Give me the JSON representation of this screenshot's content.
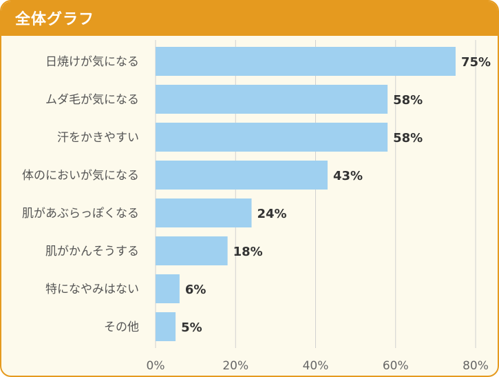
{
  "header": {
    "title": "全体グラフ"
  },
  "colors": {
    "accent": "#e59a1f",
    "background": "#fdfaec",
    "bar": "#9fd0f0",
    "grid": "#d0d0d0"
  },
  "chart_data": {
    "type": "bar",
    "orientation": "horizontal",
    "title": "全体グラフ",
    "categories": [
      "日焼けが気になる",
      "ムダ毛が気になる",
      "汗をかきやすい",
      "体のにおいが気になる",
      "肌があぶらっぽくなる",
      "肌がかんそうする",
      "特になやみはない",
      "その他"
    ],
    "values": [
      75,
      58,
      58,
      43,
      24,
      18,
      6,
      5
    ],
    "value_labels": [
      "75%",
      "58%",
      "58%",
      "43%",
      "24%",
      "18%",
      "6%",
      "5%"
    ],
    "xlim": [
      0,
      80
    ],
    "x_ticks": [
      0,
      20,
      40,
      60,
      80
    ],
    "x_tick_labels": [
      "0%",
      "20%",
      "40%",
      "60%",
      "80%"
    ],
    "xlabel": "",
    "ylabel": "",
    "grid": true
  }
}
